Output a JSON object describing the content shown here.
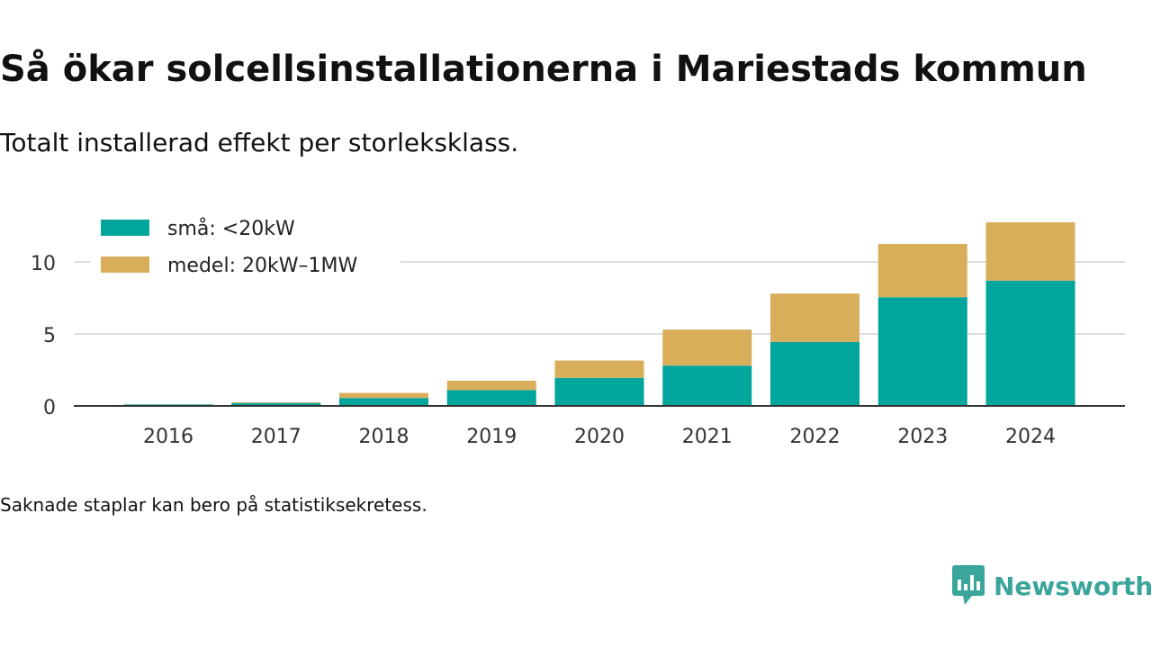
{
  "header": {
    "title": "Så ökar solcellsinstallationerna i Mariestads kommun",
    "subtitle": "Totalt installerad effekt per storleksklass."
  },
  "footer": {
    "note": "Saknade staplar kan bero på statistiksekretess.",
    "brand": "Newsworthy",
    "brand_color": "#3aa59a"
  },
  "chart_data": {
    "type": "bar",
    "stacked": true,
    "categories": [
      "2016",
      "2017",
      "2018",
      "2019",
      "2020",
      "2021",
      "2022",
      "2023",
      "2024"
    ],
    "series": [
      {
        "name": "små: <20kW",
        "color": "#00a59b",
        "values": [
          0.1,
          0.2,
          0.55,
          1.1,
          1.95,
          2.8,
          4.45,
          7.55,
          8.7
        ]
      },
      {
        "name": "medel: 20kW–1MW",
        "color": "#d9ae5b",
        "values": [
          0.0,
          0.05,
          0.35,
          0.65,
          1.2,
          2.5,
          3.35,
          3.7,
          4.05
        ]
      }
    ],
    "yticks": [
      0,
      5,
      10
    ],
    "ylim": [
      0,
      13.25
    ],
    "grid": true,
    "legend": "top-left"
  }
}
